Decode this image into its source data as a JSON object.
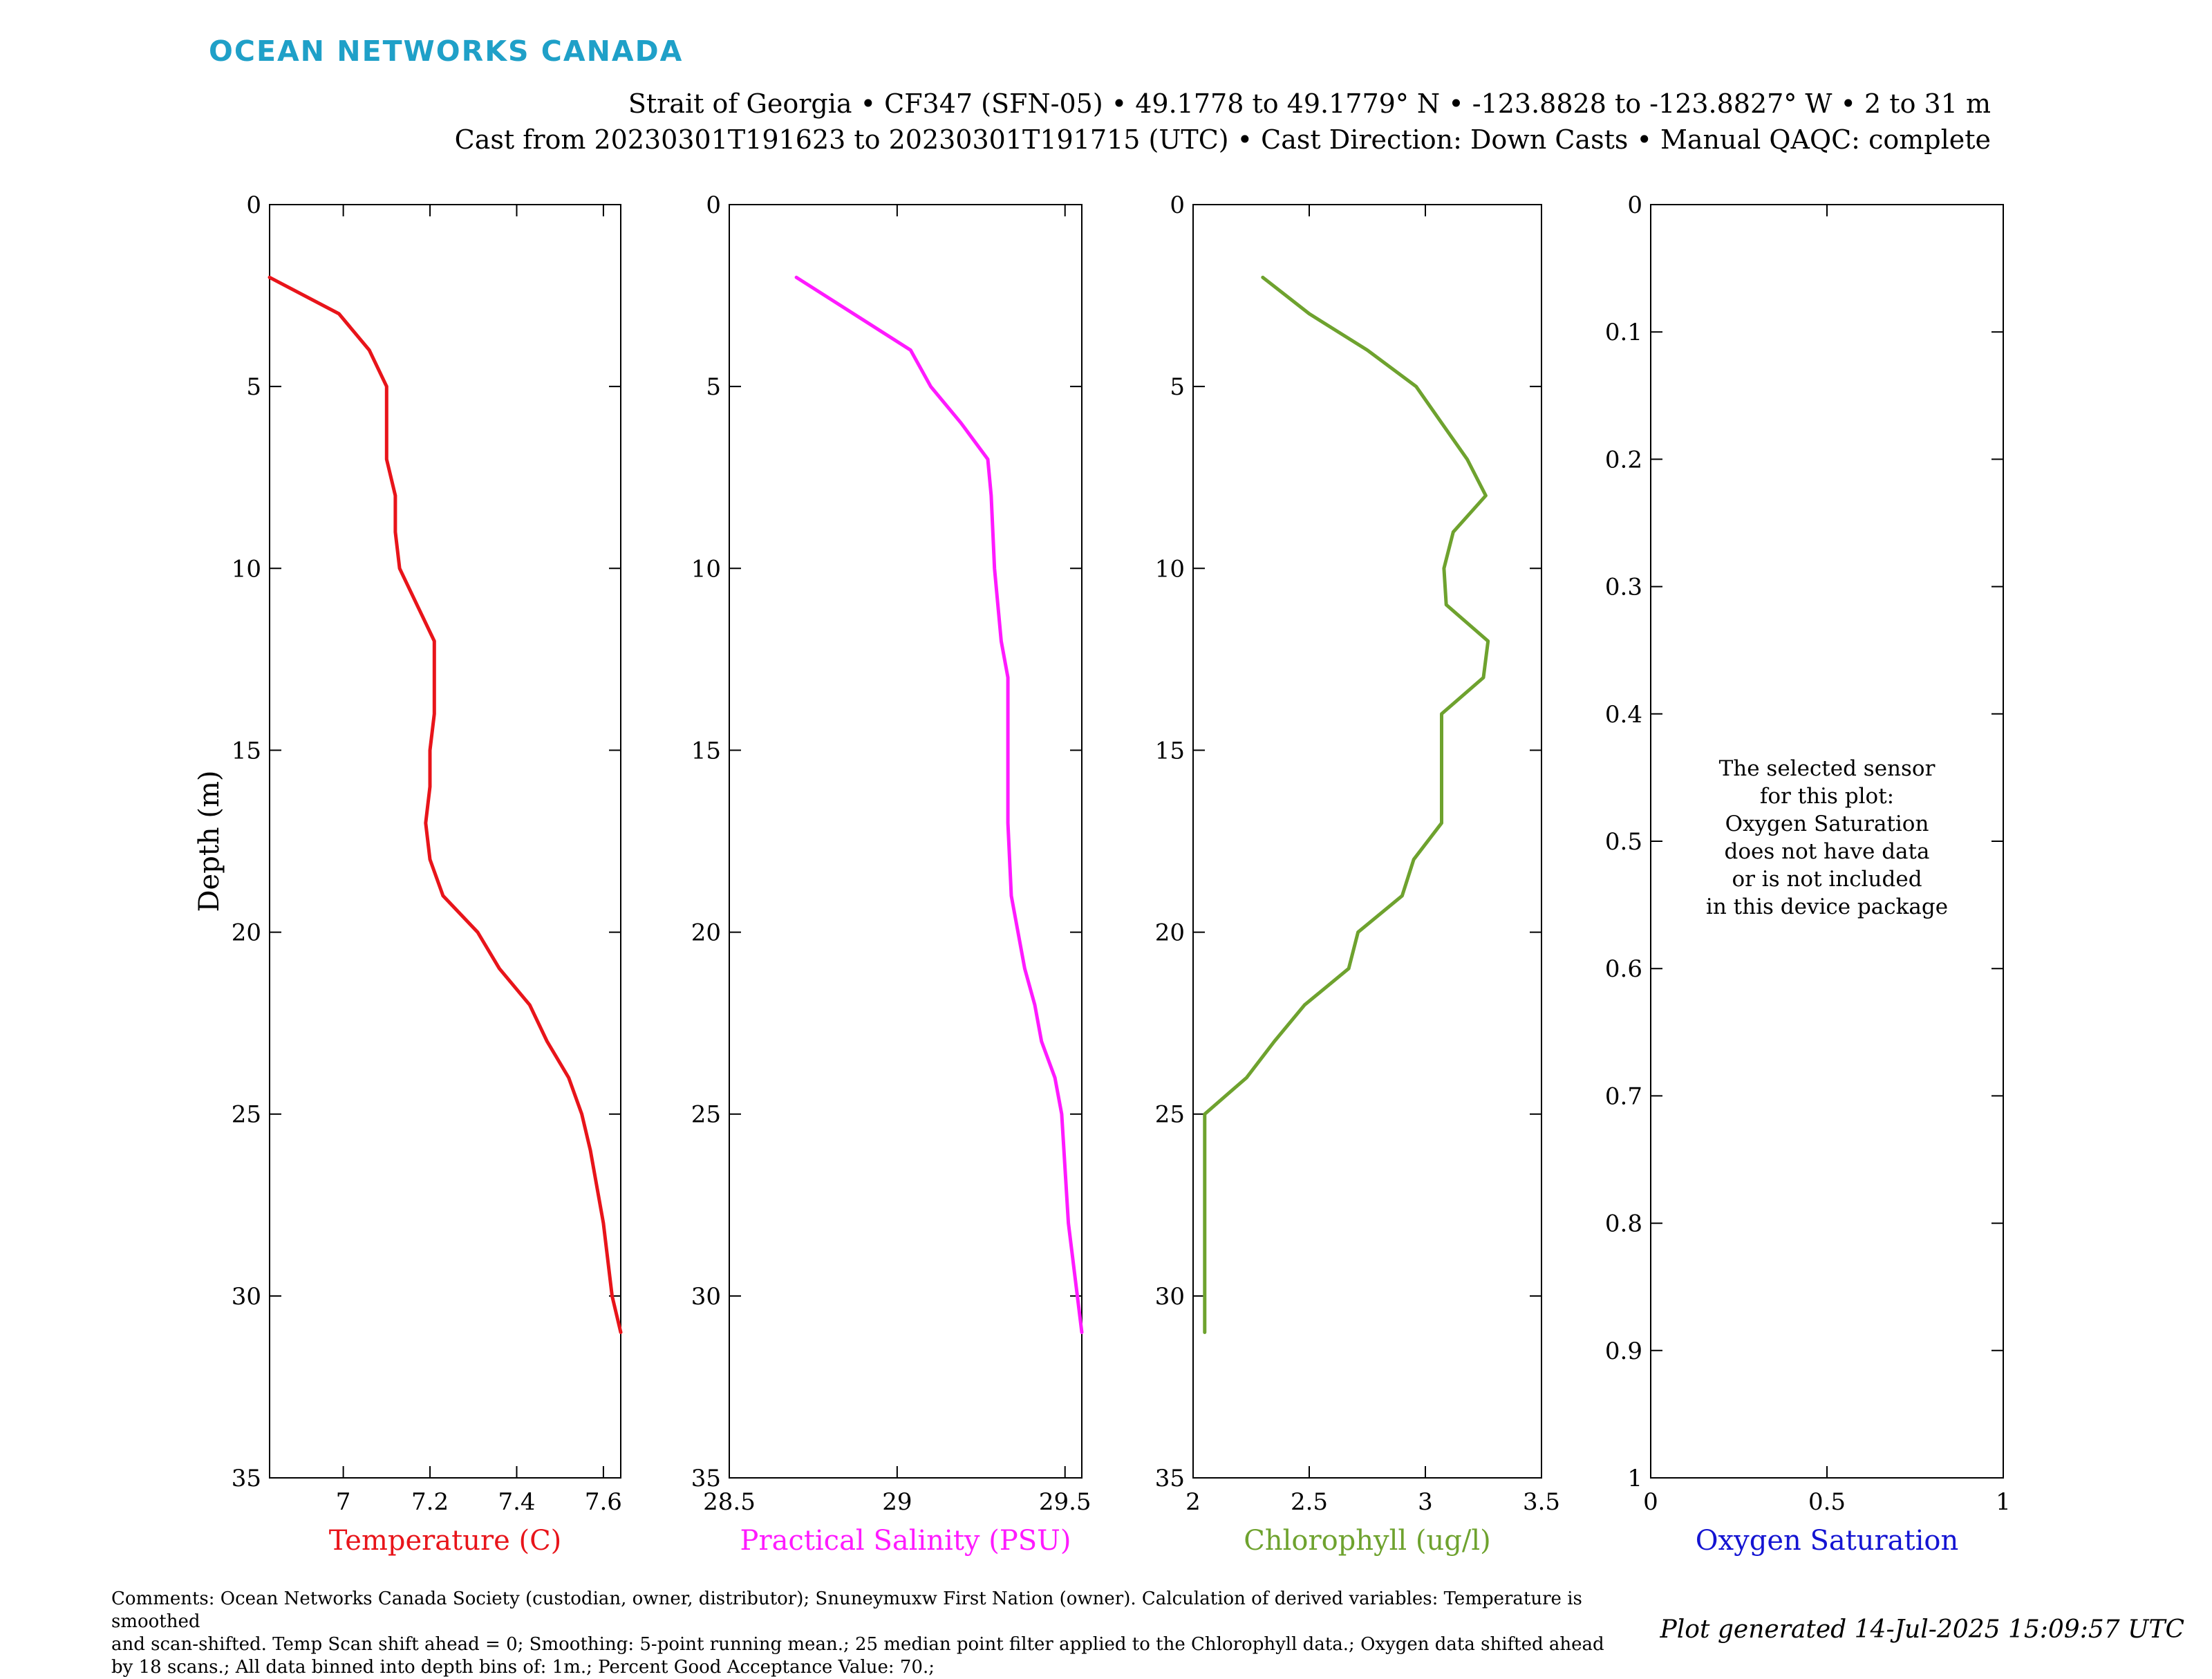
{
  "logo": "OCEAN NETWORKS CANADA",
  "header": {
    "line1": "Strait of Georgia • CF347 (SFN-05) • 49.1778 to 49.1779° N • -123.8828 to -123.8827° W • 2 to 31 m",
    "line2": "Cast from 20230301T191623 to 20230301T191715 (UTC) • Cast Direction: Down Casts • Manual QAQC: complete"
  },
  "ylabel": "Depth (m)",
  "colors": {
    "temperature": "#e8141a",
    "salinity": "#ff1aff",
    "chlorophyll": "#6ea22e",
    "oxygen": "#1414d2",
    "logo": "#1fa0c8"
  },
  "chart_data": [
    {
      "type": "line",
      "xlabel": "Temperature (C)",
      "xlim": [
        6.83,
        7.64
      ],
      "xticks": [
        7,
        7.2,
        7.4,
        7.6
      ],
      "xtick_labels": [
        "7",
        "7.2",
        "7.4",
        "7.6"
      ],
      "ylabel": "Depth (m)",
      "ylim": [
        0,
        35
      ],
      "yticks": [
        0,
        5,
        10,
        15,
        20,
        25,
        30,
        35
      ],
      "ytick_labels": [
        "0",
        "5",
        "10",
        "15",
        "20",
        "25",
        "30",
        "35"
      ],
      "reversed_y": true,
      "color": "#e8141a",
      "x": [
        6.83,
        6.99,
        7.06,
        7.1,
        7.1,
        7.1,
        7.12,
        7.12,
        7.13,
        7.17,
        7.21,
        7.21,
        7.21,
        7.2,
        7.2,
        7.19,
        7.2,
        7.23,
        7.31,
        7.36,
        7.43,
        7.47,
        7.52,
        7.55,
        7.57,
        7.6,
        7.62,
        7.64
      ],
      "y": [
        2,
        3,
        4,
        5,
        6,
        7,
        8,
        9,
        10,
        11,
        12,
        13,
        14,
        15,
        16,
        17,
        18,
        19,
        20,
        21,
        22,
        23,
        24,
        25,
        26,
        28,
        30,
        31
      ]
    },
    {
      "type": "line",
      "xlabel": "Practical Salinity (PSU)",
      "xlim": [
        28.5,
        29.55
      ],
      "xticks": [
        28.5,
        29,
        29.5
      ],
      "xtick_labels": [
        "28.5",
        "29",
        "29.5"
      ],
      "ylim": [
        0,
        35
      ],
      "yticks": [
        0,
        5,
        10,
        15,
        20,
        25,
        30,
        35
      ],
      "ytick_labels": [
        "0",
        "5",
        "10",
        "15",
        "20",
        "25",
        "30",
        "35"
      ],
      "reversed_y": true,
      "color": "#ff1aff",
      "x": [
        28.7,
        28.87,
        29.04,
        29.1,
        29.19,
        29.27,
        29.28,
        29.29,
        29.31,
        29.33,
        29.33,
        29.33,
        29.34,
        29.38,
        29.41,
        29.43,
        29.47,
        29.49,
        29.51,
        29.55
      ],
      "y": [
        2,
        3,
        4,
        5,
        6,
        7,
        8,
        10,
        12,
        13,
        15,
        17,
        19,
        21,
        22,
        23,
        24,
        25,
        28,
        31
      ]
    },
    {
      "type": "line",
      "xlabel": "Chlorophyll (ug/l)",
      "xlim": [
        2,
        3.5
      ],
      "xticks": [
        2,
        2.5,
        3,
        3.5
      ],
      "xtick_labels": [
        "2",
        "2.5",
        "3",
        "3.5"
      ],
      "ylim": [
        0,
        35
      ],
      "yticks": [
        0,
        5,
        10,
        15,
        20,
        25,
        30,
        35
      ],
      "ytick_labels": [
        "0",
        "5",
        "10",
        "15",
        "20",
        "25",
        "30",
        "35"
      ],
      "reversed_y": true,
      "color": "#6ea22e",
      "x": [
        2.3,
        2.5,
        2.75,
        2.96,
        3.07,
        3.18,
        3.26,
        3.12,
        3.08,
        3.09,
        3.27,
        3.25,
        3.07,
        3.07,
        3.07,
        3.07,
        2.95,
        2.9,
        2.71,
        2.67,
        2.48,
        2.35,
        2.23,
        2.05,
        2.05,
        2.05
      ],
      "y": [
        2,
        3,
        4,
        5,
        6,
        7,
        8,
        9,
        10,
        11,
        12,
        13,
        14,
        15,
        16,
        17,
        18,
        19,
        20,
        21,
        22,
        23,
        24,
        25,
        28,
        31
      ]
    },
    {
      "type": "line",
      "xlabel": "Oxygen Saturation",
      "xlim": [
        0,
        1
      ],
      "xticks": [
        0,
        0.5,
        1
      ],
      "xtick_labels": [
        "0",
        "0.5",
        "1"
      ],
      "ylim": [
        0,
        1
      ],
      "yticks": [
        0,
        0.1,
        0.2,
        0.3,
        0.4,
        0.5,
        0.6,
        0.7,
        0.8,
        0.9,
        1
      ],
      "ytick_labels": [
        "0",
        "0.1",
        "0.2",
        "0.3",
        "0.4",
        "0.5",
        "0.6",
        "0.7",
        "0.8",
        "0.9",
        "1"
      ],
      "reversed_y": true,
      "color": "#1414d2",
      "x": [],
      "y": [],
      "message": [
        "The selected sensor",
        "for this plot:",
        "Oxygen Saturation",
        "does not have data",
        "or is not included",
        "in this device package"
      ]
    }
  ],
  "comments": [
    "Comments: Ocean Networks Canada Society (custodian, owner, distributor); Snuneymuxw First Nation (owner). Calculation of derived variables: Temperature is smoothed",
    "and scan-shifted. Temp Scan shift ahead = 0; Smoothing: 5-point running mean.; 25 median point filter applied to the Chlorophyll data.; Oxygen data shifted ahead",
    "by 18 scans.; All data binned into depth bins of: 1m.; Percent Good Acceptance Value: 70.;"
  ],
  "generated": "Plot generated 14-Jul-2025 15:09:57 UTC"
}
